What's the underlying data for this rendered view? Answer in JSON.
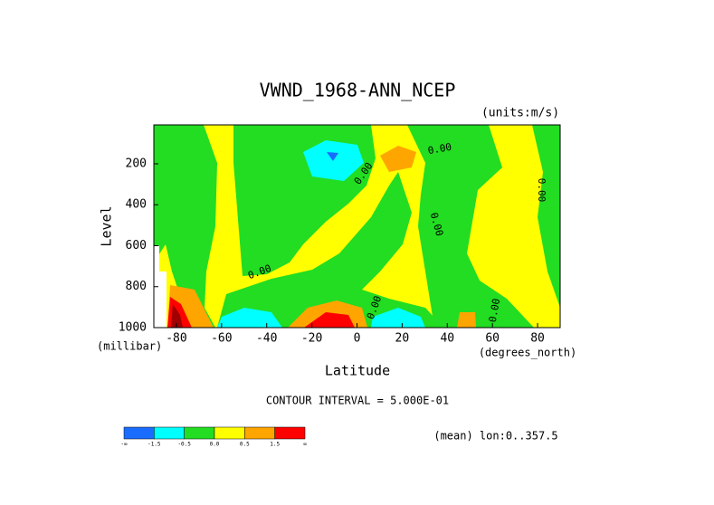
{
  "title": "VWND_1968-ANN_NCEP",
  "units": "(units:m/s)",
  "contour_interval": "CONTOUR INTERVAL = 5.000E-01",
  "footer": "(mean) lon:0..357.5",
  "chart_data": {
    "type": "contour",
    "x_label": "Latitude",
    "x_unit": "(degrees_north)",
    "y_label": "Level",
    "y_unit": "(millibar)",
    "xlim": [
      -90,
      90
    ],
    "ylim": [
      10,
      1000
    ],
    "xticks": [
      -80,
      -60,
      -40,
      -20,
      0,
      20,
      40,
      60,
      80
    ],
    "yticks": [
      200,
      400,
      600,
      800,
      1000
    ],
    "colorbar": {
      "colors": [
        "#1a6cff",
        "#00ffff",
        "#22dd22",
        "#ffff00",
        "#ffa500",
        "#ff0000"
      ],
      "labels": [
        "-∞",
        "-1.5",
        "-0.5",
        "0.0",
        "0.5",
        "1.5",
        "∞"
      ]
    },
    "contour_labels": [
      "0.00",
      "0.00",
      "0.00",
      "0.00",
      "0.00",
      "0.00",
      "0.00"
    ]
  }
}
